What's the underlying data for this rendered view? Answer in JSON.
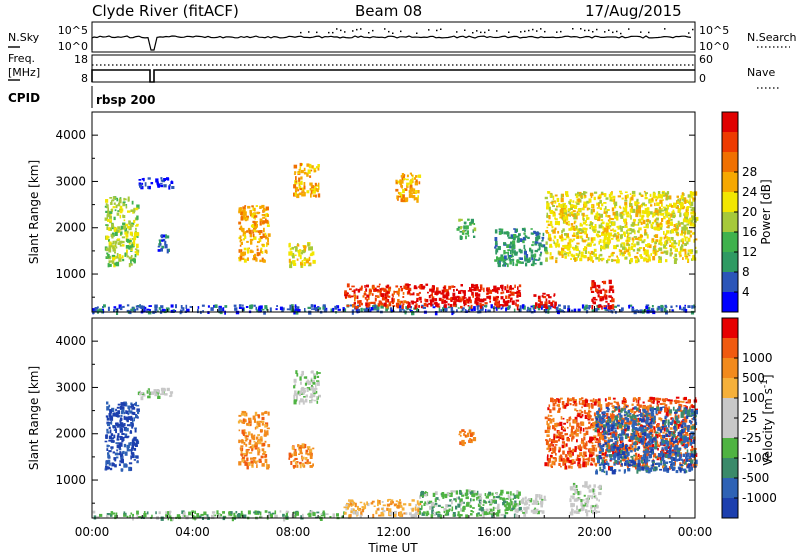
{
  "header": {
    "station": "Clyde River (fitACF)",
    "beam": "Beam 08",
    "date": "17/Aug/2015"
  },
  "status_panels": {
    "nsky_label": "N.Sky",
    "nsearch_label": "N.Search",
    "count_ticks": [
      "10^5",
      "10^0"
    ],
    "freq_label_1": "Freq.",
    "freq_label_2": "[MHz]",
    "freq_ticks": [
      "18",
      "8"
    ],
    "nave_label": "Nave",
    "nave_ticks": [
      "60",
      "0"
    ],
    "cpid_label": "CPID",
    "cpid_value": "rbsp 200"
  },
  "chart_data": [
    {
      "type": "heatmap",
      "title": "",
      "xlabel": "",
      "ylabel": "Slant Range [km]",
      "x_range_hours": [
        0,
        24
      ],
      "ylim": [
        180,
        4500
      ],
      "yticks": [
        1000,
        2000,
        3000,
        4000
      ],
      "colorbar": {
        "label": "Power [dB]",
        "ticks": [
          "4",
          "8",
          "12",
          "16",
          "20",
          "24",
          "28"
        ],
        "colors": [
          "#0000ff",
          "#2b55b8",
          "#2f9a63",
          "#3fb24d",
          "#a6c93a",
          "#f2e600",
          "#f6a800",
          "#f07000",
          "#ee3a00",
          "#e00000"
        ]
      },
      "regions": [
        {
          "t0": 0.5,
          "t1": 1.8,
          "r0": 1200,
          "r1": 2700,
          "c": 4
        },
        {
          "t0": 0.0,
          "t1": 24.0,
          "r0": 200,
          "r1": 350,
          "c": 1
        },
        {
          "t0": 1.8,
          "t1": 3.2,
          "r0": 2900,
          "r1": 3100,
          "c": 0
        },
        {
          "t0": 2.6,
          "t1": 3.0,
          "r0": 1500,
          "r1": 1900,
          "c": 1
        },
        {
          "t0": 5.8,
          "t1": 7.0,
          "r0": 1300,
          "r1": 2500,
          "c": 6
        },
        {
          "t0": 7.8,
          "t1": 8.8,
          "r0": 1200,
          "r1": 1700,
          "c": 5
        },
        {
          "t0": 8.0,
          "t1": 9.0,
          "r0": 2700,
          "r1": 3400,
          "c": 6
        },
        {
          "t0": 10.0,
          "t1": 12.5,
          "r0": 300,
          "r1": 800,
          "c": 8
        },
        {
          "t0": 12.5,
          "t1": 17.0,
          "r0": 300,
          "r1": 800,
          "c": 9
        },
        {
          "t0": 17.5,
          "t1": 18.4,
          "r0": 300,
          "r1": 600,
          "c": 9
        },
        {
          "t0": 19.8,
          "t1": 20.7,
          "r0": 300,
          "r1": 900,
          "c": 9
        },
        {
          "t0": 18.0,
          "t1": 24.0,
          "r0": 1300,
          "r1": 2800,
          "c": 5
        },
        {
          "t0": 12.0,
          "t1": 13.0,
          "r0": 2600,
          "r1": 3200,
          "c": 6
        },
        {
          "t0": 14.5,
          "t1": 15.2,
          "r0": 1800,
          "r1": 2200,
          "c": 3
        },
        {
          "t0": 16.0,
          "t1": 18.0,
          "r0": 1200,
          "r1": 2000,
          "c": 2
        }
      ]
    },
    {
      "type": "heatmap",
      "title": "",
      "xlabel": "Time UT",
      "ylabel": "Slant Range [km]",
      "x_range_hours": [
        0,
        24
      ],
      "xticks": [
        "00:00",
        "04:00",
        "08:00",
        "12:00",
        "16:00",
        "20:00",
        "00:00"
      ],
      "ylim": [
        180,
        4500
      ],
      "yticks": [
        1000,
        2000,
        3000,
        4000
      ],
      "colorbar": {
        "label": "Velocity [m s^-1]",
        "label_main": "Velocity",
        "label_unit": "[m s",
        "label_exp": "-1",
        "label_end": "]",
        "ticks": [
          "1000",
          "500",
          "100",
          "25",
          "-25",
          "-100",
          "-500",
          "-1000"
        ],
        "colors": [
          "#1c3fae",
          "#2e62b5",
          "#3a8a6a",
          "#4fb342",
          "#c8c8c8",
          "#c8c8c8",
          "#f5b03a",
          "#f28a1c",
          "#f05a10",
          "#e60000"
        ]
      },
      "regions": [
        {
          "t0": 0.5,
          "t1": 1.8,
          "r0": 1200,
          "r1": 2700,
          "c": 0
        },
        {
          "t0": 0.0,
          "t1": 10.0,
          "r0": 200,
          "r1": 350,
          "c": 3
        },
        {
          "t0": 1.8,
          "t1": 3.2,
          "r0": 2800,
          "r1": 3000,
          "c": 4
        },
        {
          "t0": 5.8,
          "t1": 7.0,
          "r0": 1300,
          "r1": 2500,
          "c": 7
        },
        {
          "t0": 7.8,
          "t1": 8.8,
          "r0": 1300,
          "r1": 1800,
          "c": 7
        },
        {
          "t0": 8.0,
          "t1": 9.0,
          "r0": 2700,
          "r1": 3400,
          "c": 4
        },
        {
          "t0": 10.0,
          "t1": 13.0,
          "r0": 250,
          "r1": 600,
          "c": 6
        },
        {
          "t0": 13.0,
          "t1": 17.0,
          "r0": 250,
          "r1": 800,
          "c": 3
        },
        {
          "t0": 17.0,
          "t1": 18.0,
          "r0": 250,
          "r1": 700,
          "c": 4
        },
        {
          "t0": 18.0,
          "t1": 24.0,
          "r0": 1300,
          "r1": 2800,
          "c": 8
        },
        {
          "t0": 20.0,
          "t1": 24.0,
          "r0": 1200,
          "r1": 2600,
          "c": 1
        },
        {
          "t0": 19.0,
          "t1": 20.2,
          "r0": 300,
          "r1": 1000,
          "c": 4
        },
        {
          "t0": 14.5,
          "t1": 15.2,
          "r0": 1800,
          "r1": 2100,
          "c": 7
        }
      ]
    }
  ]
}
